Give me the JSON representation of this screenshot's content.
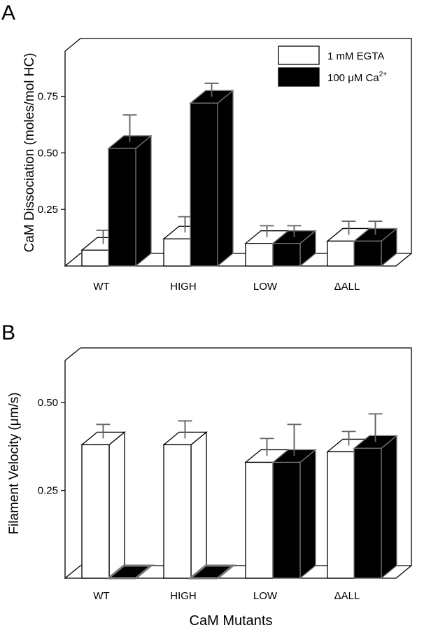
{
  "figure": {
    "xlabel": "CaM Mutants"
  },
  "legend": {
    "entries": [
      {
        "label": "1 mM EGTA",
        "color": "#ffffff"
      },
      {
        "label_main": "100 μM Ca",
        "label_sup": "2+",
        "color": "#000000"
      }
    ]
  },
  "chart_data": [
    {
      "type": "bar",
      "panel_label": "A",
      "ylabel": "CaM Dissociation (moles/mol HC)",
      "categories": [
        "WT",
        "HIGH",
        "LOW",
        "ΔALL"
      ],
      "yticks": [
        0.25,
        0.5,
        0.75
      ],
      "ytick_labels": [
        "0.25",
        "0.50",
        "0.75"
      ],
      "ylim": [
        0,
        0.95
      ],
      "series": [
        {
          "name": "1 mM EGTA",
          "color": "#ffffff",
          "values": [
            0.07,
            0.12,
            0.1,
            0.11
          ],
          "errors": [
            0.06,
            0.07,
            0.05,
            0.06
          ]
        },
        {
          "name": "100 μM Ca2+",
          "color": "#000000",
          "values": [
            0.52,
            0.72,
            0.1,
            0.11
          ],
          "errors": [
            0.12,
            0.06,
            0.05,
            0.06
          ]
        }
      ]
    },
    {
      "type": "bar",
      "panel_label": "B",
      "ylabel": "Filament Velocity (μm/s)",
      "categories": [
        "WT",
        "HIGH",
        "LOW",
        "ΔALL"
      ],
      "yticks": [
        0.25,
        0.5
      ],
      "ytick_labels": [
        "0.25",
        "0.50"
      ],
      "ylim": [
        0,
        0.62
      ],
      "series": [
        {
          "name": "1 mM EGTA",
          "color": "#ffffff",
          "values": [
            0.38,
            0.38,
            0.33,
            0.36
          ],
          "errors": [
            0.04,
            0.05,
            0.05,
            0.04
          ]
        },
        {
          "name": "100 μM Ca2+",
          "color": "#000000",
          "values": [
            0.0,
            0.0,
            0.33,
            0.37
          ],
          "errors": [
            0.0,
            0.0,
            0.09,
            0.08
          ]
        }
      ]
    }
  ]
}
